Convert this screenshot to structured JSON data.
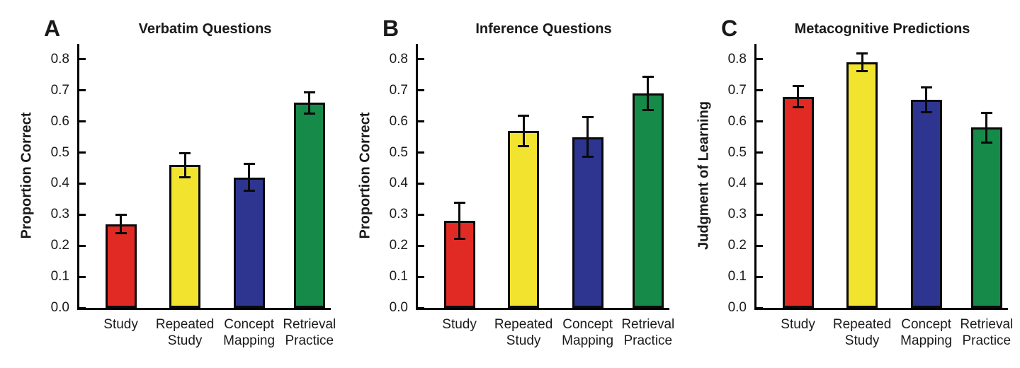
{
  "chart_data": [
    {
      "type": "bar",
      "letter": "A",
      "title": "Verbatim Questions",
      "xlabel": "",
      "ylabel": "Proportion Correct",
      "categories": [
        "Study",
        "Repeated\nStudy",
        "Concept\nMapping",
        "Retrieval\nPractice"
      ],
      "values": [
        0.27,
        0.46,
        0.42,
        0.66
      ],
      "errors": [
        0.03,
        0.04,
        0.045,
        0.035
      ],
      "bar_colors": [
        "#e22a24",
        "#f2e32f",
        "#2d3590",
        "#168a48"
      ],
      "ylim": [
        0.0,
        0.85
      ],
      "yticks": [
        0.0,
        0.1,
        0.2,
        0.3,
        0.4,
        0.5,
        0.6,
        0.7,
        0.8
      ],
      "grid": false,
      "legend": "none"
    },
    {
      "type": "bar",
      "letter": "B",
      "title": "Inference Questions",
      "xlabel": "",
      "ylabel": "Proportion Correct",
      "categories": [
        "Study",
        "Repeated\nStudy",
        "Concept\nMapping",
        "Retrieval\nPractice"
      ],
      "values": [
        0.28,
        0.57,
        0.55,
        0.69
      ],
      "errors": [
        0.06,
        0.05,
        0.065,
        0.055
      ],
      "bar_colors": [
        "#e22a24",
        "#f2e32f",
        "#2d3590",
        "#168a48"
      ],
      "ylim": [
        0.0,
        0.85
      ],
      "yticks": [
        0.0,
        0.1,
        0.2,
        0.3,
        0.4,
        0.5,
        0.6,
        0.7,
        0.8
      ],
      "grid": false,
      "legend": "none"
    },
    {
      "type": "bar",
      "letter": "C",
      "title": "Metacognitive Predictions",
      "xlabel": "",
      "ylabel": "Judgment of Learning",
      "categories": [
        "Study",
        "Repeated\nStudy",
        "Concept\nMapping",
        "Retrieval\nPractice"
      ],
      "values": [
        0.68,
        0.79,
        0.67,
        0.58
      ],
      "errors": [
        0.035,
        0.03,
        0.04,
        0.05
      ],
      "bar_colors": [
        "#e22a24",
        "#f2e32f",
        "#2d3590",
        "#168a48"
      ],
      "ylim": [
        0.0,
        0.85
      ],
      "yticks": [
        0.0,
        0.1,
        0.2,
        0.3,
        0.4,
        0.5,
        0.6,
        0.7,
        0.8
      ],
      "grid": false,
      "legend": "none"
    }
  ]
}
